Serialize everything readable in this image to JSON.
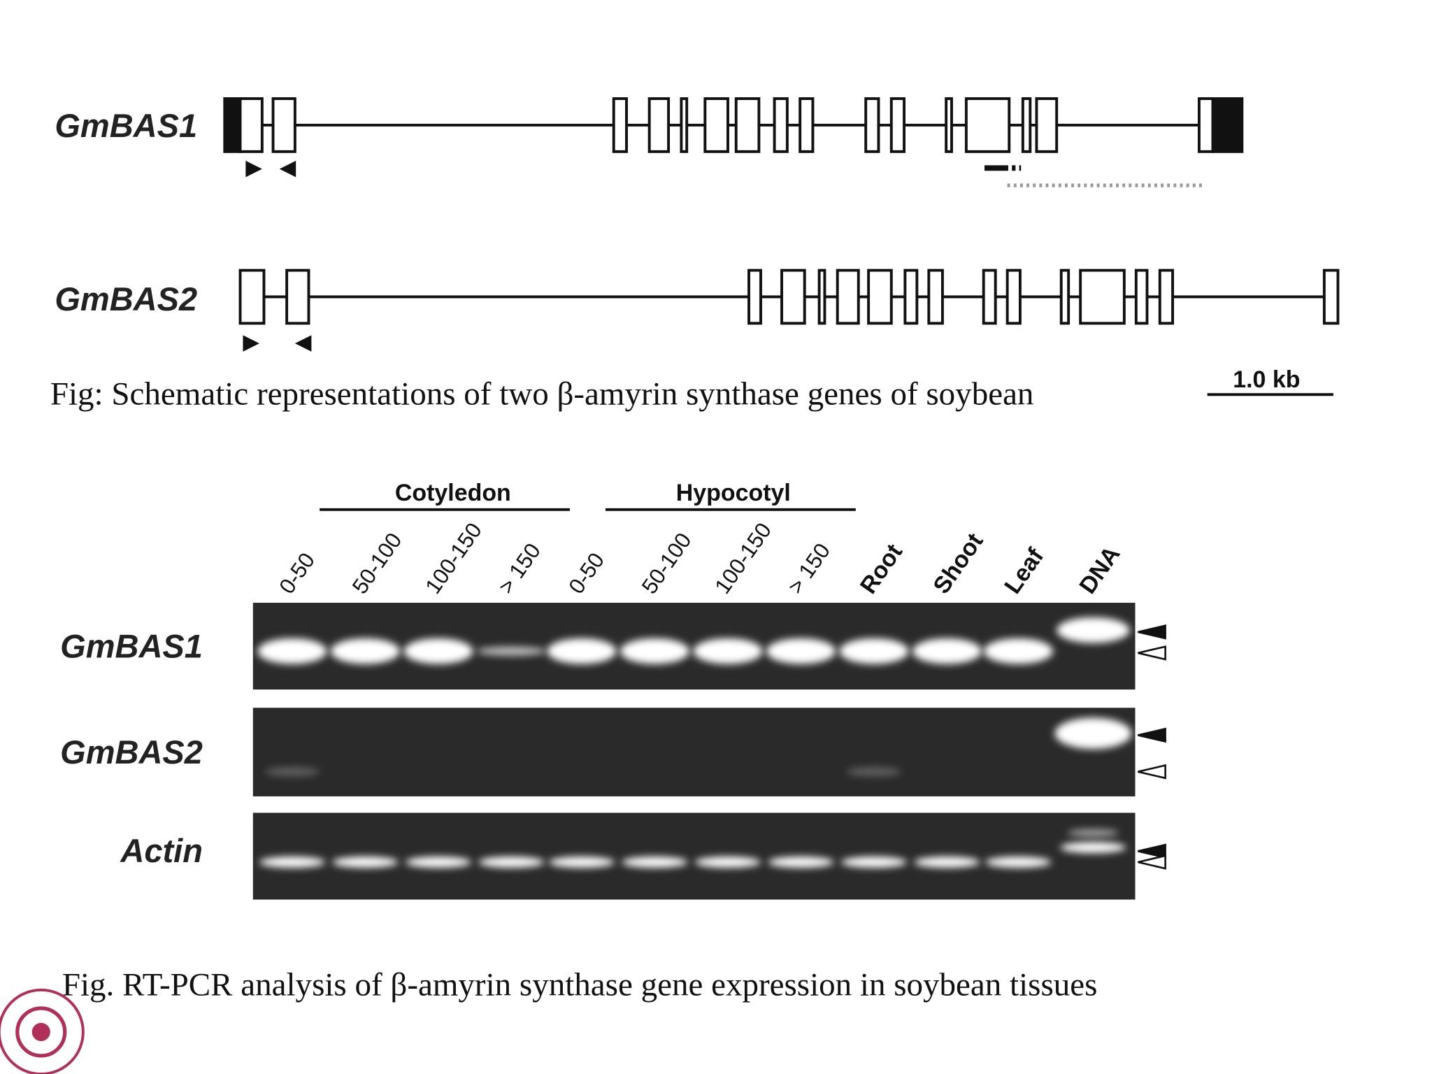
{
  "diagram": {
    "genes": [
      {
        "label": "GmBAS1"
      },
      {
        "label": "GmBAS2"
      }
    ],
    "scale_label": "1.0 kb",
    "caption": "Fig: Schematic representations of  two β-amyrin synthase genes of soybean"
  },
  "gel": {
    "groups": [
      {
        "label": "Cotyledon"
      },
      {
        "label": "Hypocotyl"
      }
    ],
    "lanes": [
      "0-50",
      "50-100",
      "100-150",
      "> 150",
      "0-50",
      "50-100",
      "100-150",
      "> 150",
      "Root",
      "Shoot",
      "Leaf",
      "DNA"
    ],
    "rows": [
      {
        "label": "GmBAS1"
      },
      {
        "label": "GmBAS2"
      },
      {
        "label": "Actin"
      }
    ],
    "caption": "Fig. RT-PCR analysis of β-amyrin synthase gene expression in soybean tissues"
  }
}
